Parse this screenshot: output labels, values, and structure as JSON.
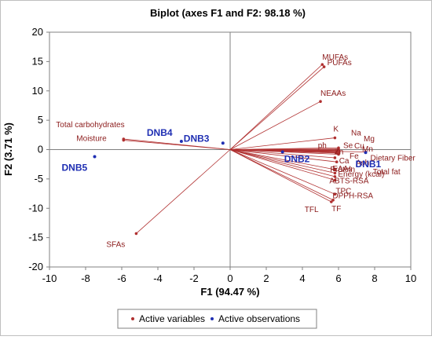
{
  "chart_data": {
    "type": "scatter",
    "title": "Biplot (axes F1 and F2: 98.18 %)",
    "xlabel": "F1 (94.47 %)",
    "ylabel": "F2 (3.71 %)",
    "xlim": [
      -10,
      10
    ],
    "ylim": [
      -20,
      20
    ],
    "xticks": [
      -10,
      -8,
      -6,
      -4,
      -2,
      0,
      2,
      4,
      6,
      8,
      10
    ],
    "yticks": [
      -20,
      -15,
      -10,
      -5,
      0,
      5,
      10,
      15,
      20
    ],
    "grid": false,
    "legend_position": "bottom",
    "colors": {
      "variables": "#b03030",
      "observations": "#1f2fb3",
      "labels_var": "#8b1a1a"
    },
    "series": [
      {
        "name": "Active variables",
        "points": [
          {
            "label": "MUFAs",
            "x": 5.1,
            "y": 14.5
          },
          {
            "label": "PUFAs",
            "x": 5.2,
            "y": 14.1
          },
          {
            "label": "NEAAs",
            "x": 5.0,
            "y": 8.2
          },
          {
            "label": "K",
            "x": 5.8,
            "y": 2.0
          },
          {
            "label": "Na",
            "x": 6.0,
            "y": 0.3
          },
          {
            "label": "Mg",
            "x": 6.0,
            "y": 0.1
          },
          {
            "label": "Se",
            "x": 6.0,
            "y": 0.0
          },
          {
            "label": "Cu",
            "x": 6.0,
            "y": -0.1
          },
          {
            "label": "Mn",
            "x": 6.0,
            "y": -0.2
          },
          {
            "label": "ph",
            "x": 5.9,
            "y": -0.3
          },
          {
            "label": "Zn",
            "x": 5.9,
            "y": -0.4
          },
          {
            "label": "Fe",
            "x": 6.0,
            "y": -0.5
          },
          {
            "label": "Ca",
            "x": 5.9,
            "y": -0.6
          },
          {
            "label": "Ash",
            "x": 6.0,
            "y": -0.8
          },
          {
            "label": "Dietary Fiber",
            "x": 7.5,
            "y": -0.4
          },
          {
            "label": "Protein",
            "x": 5.8,
            "y": -1.4
          },
          {
            "label": "Total fat",
            "x": 5.9,
            "y": -2.1
          },
          {
            "label": "EAAs",
            "x": 5.8,
            "y": -3.4
          },
          {
            "label": "ABTS-RSA",
            "x": 5.8,
            "y": -4.0
          },
          {
            "label": "Energy (kcal)",
            "x": 5.8,
            "y": -4.6
          },
          {
            "label": "TPC",
            "x": 5.8,
            "y": -5.2
          },
          {
            "label": "DPPH-RSA",
            "x": 5.8,
            "y": -7.6
          },
          {
            "label": "TF",
            "x": 5.7,
            "y": -8.6
          },
          {
            "label": "TFL",
            "x": 5.6,
            "y": -8.9
          },
          {
            "label": "Total carbohydrates",
            "x": -5.9,
            "y": 1.8
          },
          {
            "label": "Moisture",
            "x": -5.9,
            "y": 1.6
          },
          {
            "label": "SFAs",
            "x": -5.2,
            "y": -14.3
          }
        ]
      },
      {
        "name": "Active observations",
        "points": [
          {
            "label": "DNB1",
            "x": 7.5,
            "y": -0.5
          },
          {
            "label": "DNB2",
            "x": 2.9,
            "y": -0.4
          },
          {
            "label": "DNB3",
            "x": -0.4,
            "y": 1.1
          },
          {
            "label": "DNB4",
            "x": -2.7,
            "y": 1.4
          },
          {
            "label": "DNB5",
            "x": -7.5,
            "y": -1.2
          }
        ]
      }
    ]
  }
}
